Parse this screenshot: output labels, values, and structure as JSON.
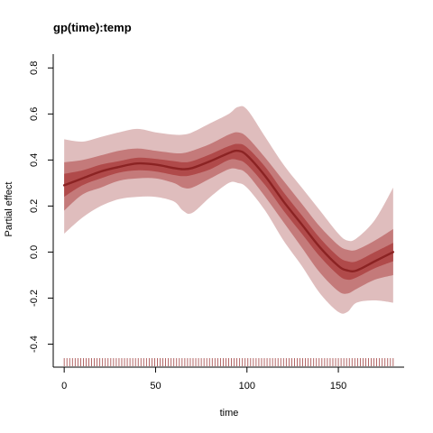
{
  "chart_data": {
    "type": "line",
    "title": "gp(time):temp",
    "xlabel": "time",
    "ylabel": "Partial effect",
    "xlim": [
      -6,
      186
    ],
    "ylim": [
      -0.5,
      0.86
    ],
    "x_ticks": [
      0,
      50,
      100,
      150
    ],
    "y_ticks": [
      -0.4,
      -0.2,
      0.0,
      0.2,
      0.4,
      0.6,
      0.8
    ],
    "x_tick_labels": [
      "0",
      "50",
      "100",
      "150"
    ],
    "y_tick_labels": [
      "-0.4",
      "-0.2",
      "0.0",
      "0.2",
      "0.4",
      "0.6",
      "0.8"
    ],
    "grid": false,
    "legend": "none",
    "colors": {
      "line": "#8b2323",
      "band_inner": "#b04a4a",
      "band_mid": "#c47a7a",
      "band_outer": "#dfbdbd",
      "rug": "#a04040"
    },
    "x": [
      0,
      10,
      20,
      30,
      40,
      50,
      60,
      65,
      70,
      80,
      90,
      95,
      100,
      110,
      120,
      130,
      140,
      150,
      155,
      160,
      170,
      180
    ],
    "series": [
      {
        "values": [
          0.29,
          0.32,
          0.35,
          0.37,
          0.385,
          0.38,
          0.365,
          0.36,
          0.365,
          0.395,
          0.43,
          0.44,
          0.42,
          0.33,
          0.22,
          0.12,
          0.02,
          -0.06,
          -0.08,
          -0.08,
          -0.04,
          0.0
        ]
      }
    ],
    "bands": [
      {
        "level": "outer",
        "lower": [
          0.08,
          0.15,
          0.2,
          0.23,
          0.24,
          0.24,
          0.22,
          0.18,
          0.17,
          0.24,
          0.3,
          0.3,
          0.28,
          0.18,
          0.05,
          -0.06,
          -0.18,
          -0.26,
          -0.26,
          -0.22,
          -0.21,
          -0.22
        ],
        "upper": [
          0.49,
          0.48,
          0.5,
          0.52,
          0.535,
          0.52,
          0.51,
          0.51,
          0.52,
          0.56,
          0.6,
          0.63,
          0.62,
          0.5,
          0.38,
          0.28,
          0.18,
          0.08,
          0.05,
          0.06,
          0.14,
          0.28
        ]
      },
      {
        "level": "mid",
        "lower": [
          0.18,
          0.25,
          0.28,
          0.31,
          0.32,
          0.32,
          0.3,
          0.28,
          0.28,
          0.32,
          0.36,
          0.36,
          0.34,
          0.24,
          0.13,
          0.02,
          -0.09,
          -0.17,
          -0.18,
          -0.16,
          -0.12,
          -0.1
        ],
        "upper": [
          0.39,
          0.4,
          0.42,
          0.44,
          0.45,
          0.44,
          0.43,
          0.43,
          0.44,
          0.47,
          0.51,
          0.52,
          0.5,
          0.41,
          0.31,
          0.21,
          0.11,
          0.03,
          0.01,
          0.01,
          0.05,
          0.1
        ]
      },
      {
        "level": "inner",
        "lower": [
          0.24,
          0.29,
          0.32,
          0.345,
          0.355,
          0.35,
          0.335,
          0.33,
          0.335,
          0.36,
          0.4,
          0.4,
          0.38,
          0.29,
          0.18,
          0.08,
          -0.02,
          -0.1,
          -0.12,
          -0.11,
          -0.07,
          -0.04
        ],
        "upper": [
          0.34,
          0.355,
          0.38,
          0.395,
          0.41,
          0.405,
          0.395,
          0.39,
          0.395,
          0.425,
          0.46,
          0.47,
          0.455,
          0.37,
          0.26,
          0.16,
          0.06,
          -0.02,
          -0.04,
          -0.04,
          0.0,
          0.04
        ]
      }
    ],
    "rug": {
      "start": 0,
      "end": 180,
      "step": 1.5
    }
  }
}
